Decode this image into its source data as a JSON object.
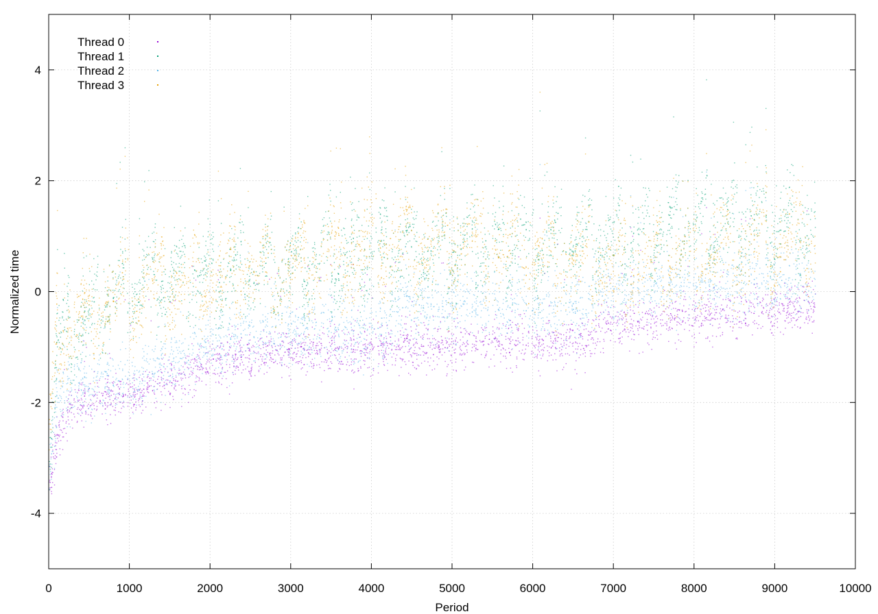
{
  "chart_data": {
    "type": "scatter",
    "title": "",
    "xlabel": "Period",
    "ylabel": "Normalized time",
    "xlim": [
      0,
      10000
    ],
    "ylim": [
      -5,
      5
    ],
    "xticks": [
      0,
      1000,
      2000,
      3000,
      4000,
      5000,
      6000,
      7000,
      8000,
      9000,
      10000
    ],
    "yticks": [
      -4,
      -2,
      0,
      2,
      4
    ],
    "grid": true,
    "legend_position": "top-left",
    "point_count_per_series": 9500,
    "series": [
      {
        "name": "Thread 0",
        "color": "#9400d3",
        "trend": [
          [
            0,
            -3.6
          ],
          [
            100,
            -2.6
          ],
          [
            300,
            -2.0
          ],
          [
            1000,
            -1.9
          ],
          [
            1500,
            -1.6
          ],
          [
            2000,
            -1.3
          ],
          [
            3000,
            -1.1
          ],
          [
            4200,
            -1.0
          ],
          [
            4300,
            -1.0
          ],
          [
            6700,
            -0.9
          ],
          [
            6800,
            -0.6
          ],
          [
            9500,
            -0.3
          ]
        ],
        "spread": 0.35
      },
      {
        "name": "Thread 1",
        "color": "#009e73",
        "trend": [
          [
            0,
            -3.2
          ],
          [
            100,
            -1.0
          ],
          [
            1000,
            0.2
          ],
          [
            2000,
            0.3
          ],
          [
            3000,
            0.4
          ],
          [
            4000,
            0.7
          ],
          [
            5000,
            0.7
          ],
          [
            6000,
            0.9
          ],
          [
            7000,
            0.9
          ],
          [
            8000,
            1.2
          ],
          [
            9500,
            1.2
          ]
        ],
        "spread": 0.55
      },
      {
        "name": "Thread 2",
        "color": "#56b4e9",
        "trend": [
          [
            0,
            -3.4
          ],
          [
            100,
            -1.9
          ],
          [
            300,
            -1.7
          ],
          [
            1000,
            -1.6
          ],
          [
            2000,
            -0.9
          ],
          [
            3000,
            -0.7
          ],
          [
            4200,
            -0.7
          ],
          [
            4300,
            -0.3
          ],
          [
            6700,
            -0.3
          ],
          [
            6800,
            0.0
          ],
          [
            9500,
            0.2
          ]
        ],
        "spread": 0.5
      },
      {
        "name": "Thread 3",
        "color": "#e69f00",
        "trend": [
          [
            0,
            -3.0
          ],
          [
            100,
            -0.8
          ],
          [
            1000,
            0.0
          ],
          [
            2000,
            0.3
          ],
          [
            3000,
            0.4
          ],
          [
            4000,
            0.8
          ],
          [
            5000,
            0.8
          ],
          [
            6000,
            0.7
          ],
          [
            7000,
            0.4
          ],
          [
            8000,
            0.6
          ],
          [
            9500,
            1.0
          ]
        ],
        "spread": 0.6
      }
    ]
  }
}
